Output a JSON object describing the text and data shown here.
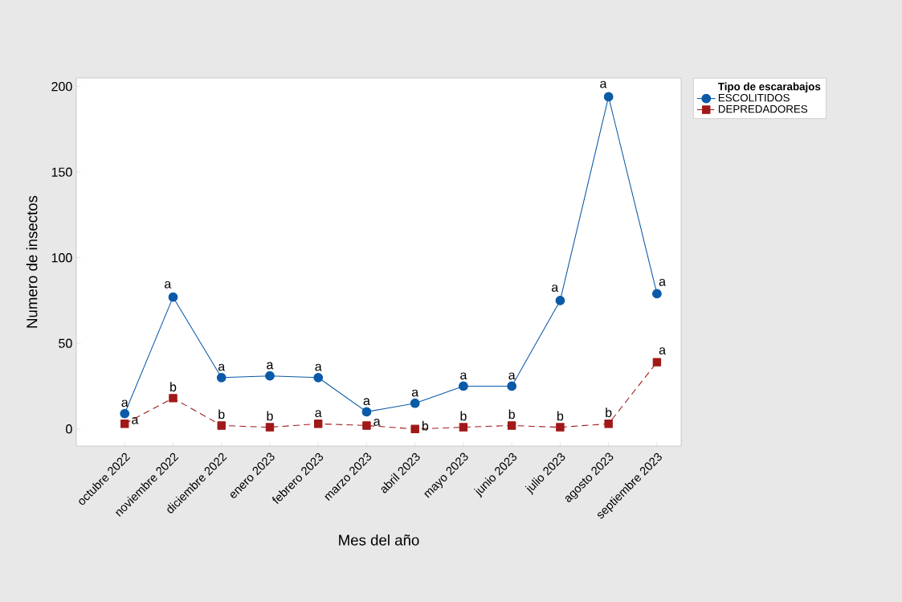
{
  "chart_data": {
    "type": "line",
    "xlabel": "Mes del año",
    "ylabel": "Numero de insectos",
    "legend_title": "Tipo de escarabajos",
    "categories": [
      "octubre 2022",
      "noviembre 2022",
      "diciembre 2022",
      "enero 2023",
      "febrero 2023",
      "marzo 2023",
      "abril 2023",
      "mayo 2023",
      "junio 2023",
      "julio 2023",
      "agosto 2023",
      "septiembre 2023"
    ],
    "series": [
      {
        "name": "ESCOLITIDOS",
        "color": "#0a5aa8",
        "marker": "circle",
        "line_style": "solid",
        "values": [
          9,
          77,
          30,
          31,
          30,
          10,
          15,
          25,
          25,
          75,
          194,
          79
        ]
      },
      {
        "name": "DEPREDADORES",
        "color": "#a01818",
        "marker": "square",
        "line_style": "dashed",
        "values": [
          3,
          18,
          2,
          1,
          3,
          2,
          0,
          1,
          2,
          1,
          3,
          39
        ]
      }
    ],
    "ylim": [
      -10,
      205
    ],
    "yticks": [
      0,
      50,
      100,
      150,
      200
    ],
    "grid": false,
    "legend": "top right",
    "annotations": [
      {
        "text": "a",
        "x": "octubre 2022",
        "y": 9
      },
      {
        "text": "a",
        "x": "noviembre 2022",
        "y": 77
      },
      {
        "text": "a",
        "x": "diciembre 2022",
        "y": 30
      },
      {
        "text": "a",
        "x": "enero 2023",
        "y": 31
      },
      {
        "text": "a",
        "x": "febrero 2023",
        "y": 30
      },
      {
        "text": "a",
        "x": "marzo 2023",
        "y": 10
      },
      {
        "text": "a",
        "x": "abril 2023",
        "y": 15
      },
      {
        "text": "a",
        "x": "mayo 2023",
        "y": 25
      },
      {
        "text": "a",
        "x": "junio 2023",
        "y": 25
      },
      {
        "text": "a",
        "x": "julio 2023",
        "y": 75
      },
      {
        "text": "a",
        "x": "agosto 2023",
        "y": 194
      },
      {
        "text": "a",
        "x": "septiembre 2023",
        "y": 79
      },
      {
        "text": "a",
        "x": "octubre 2022",
        "y": 3
      },
      {
        "text": "b",
        "x": "noviembre 2022",
        "y": 18
      },
      {
        "text": "b",
        "x": "diciembre 2022",
        "y": 2
      },
      {
        "text": "b",
        "x": "enero 2023",
        "y": 1
      },
      {
        "text": "a",
        "x": "febrero 2023",
        "y": 3
      },
      {
        "text": "a",
        "x": "marzo 2023",
        "y": 2
      },
      {
        "text": "b",
        "x": "abril 2023",
        "y": 0
      },
      {
        "text": "b",
        "x": "mayo 2023",
        "y": 1
      },
      {
        "text": "b",
        "x": "junio 2023",
        "y": 2
      },
      {
        "text": "b",
        "x": "julio 2023",
        "y": 1
      },
      {
        "text": "b",
        "x": "agosto 2023",
        "y": 3
      },
      {
        "text": "a",
        "x": "septiembre 2023",
        "y": 39
      }
    ]
  }
}
